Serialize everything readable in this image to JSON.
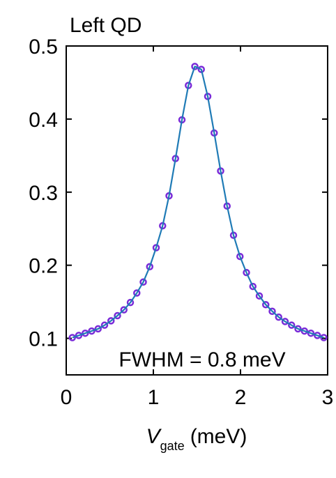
{
  "chart_data": {
    "type": "scatter",
    "title": "Left QD",
    "annotation": "FWHM = 0.8 meV",
    "xlabel": {
      "symbol": "V",
      "subscript": "gate",
      "unit": "(meV)"
    },
    "xlim": [
      0,
      3
    ],
    "xticks": [
      0,
      1,
      2,
      3
    ],
    "ylim": [
      0.05,
      0.5
    ],
    "yticks": [
      0.1,
      0.2,
      0.3,
      0.4,
      0.5
    ],
    "grid": false,
    "series": [
      {
        "color": "#7a2bd8",
        "line_color": "#1f7bb6",
        "x": [
          0.07,
          0.144,
          0.218,
          0.292,
          0.366,
          0.44,
          0.514,
          0.588,
          0.662,
          0.736,
          0.81,
          0.884,
          0.958,
          1.032,
          1.106,
          1.18,
          1.254,
          1.328,
          1.402,
          1.476,
          1.55,
          1.624,
          1.698,
          1.772,
          1.846,
          1.92,
          1.994,
          2.068,
          2.142,
          2.216,
          2.29,
          2.364,
          2.438,
          2.512,
          2.586,
          2.66,
          2.734,
          2.808,
          2.882,
          2.956
        ],
        "values": [
          0.101,
          0.104,
          0.107,
          0.11,
          0.113,
          0.118,
          0.124,
          0.131,
          0.139,
          0.149,
          0.162,
          0.177,
          0.198,
          0.224,
          0.254,
          0.295,
          0.346,
          0.399,
          0.446,
          0.472,
          0.468,
          0.431,
          0.381,
          0.329,
          0.281,
          0.241,
          0.212,
          0.19,
          0.171,
          0.158,
          0.146,
          0.137,
          0.129,
          0.123,
          0.118,
          0.113,
          0.11,
          0.107,
          0.104,
          0.101
        ]
      }
    ]
  }
}
